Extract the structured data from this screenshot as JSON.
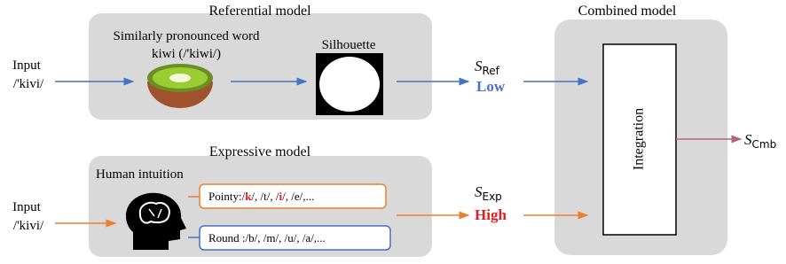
{
  "referential": {
    "title": "Referential model",
    "word_caption": "Similarly pronounced word",
    "word": "kiwi (/'kiwi/)",
    "silhouette": "Silhouette"
  },
  "expressive": {
    "title": "Expressive model",
    "caption": "Human intuition",
    "pointy": [
      "Pointy:/",
      "k",
      "/, /t/, /",
      "i",
      "/, /e/,..."
    ],
    "round": "Round :/b/, /m/, /u/, /a/,..."
  },
  "inputs": [
    {
      "label": "Input",
      "word": "/'kivi/"
    },
    {
      "label": "Input",
      "word": "/'kivi/"
    }
  ],
  "scores": {
    "ref": {
      "symbol": "S",
      "sub": "Ref",
      "level": "Low"
    },
    "exp": {
      "symbol": "S",
      "sub": "Exp",
      "level": "High"
    },
    "cmb": {
      "symbol": "S",
      "sub": "Cmb"
    }
  },
  "combined": {
    "title": "Combined model",
    "block": "Integration"
  }
}
